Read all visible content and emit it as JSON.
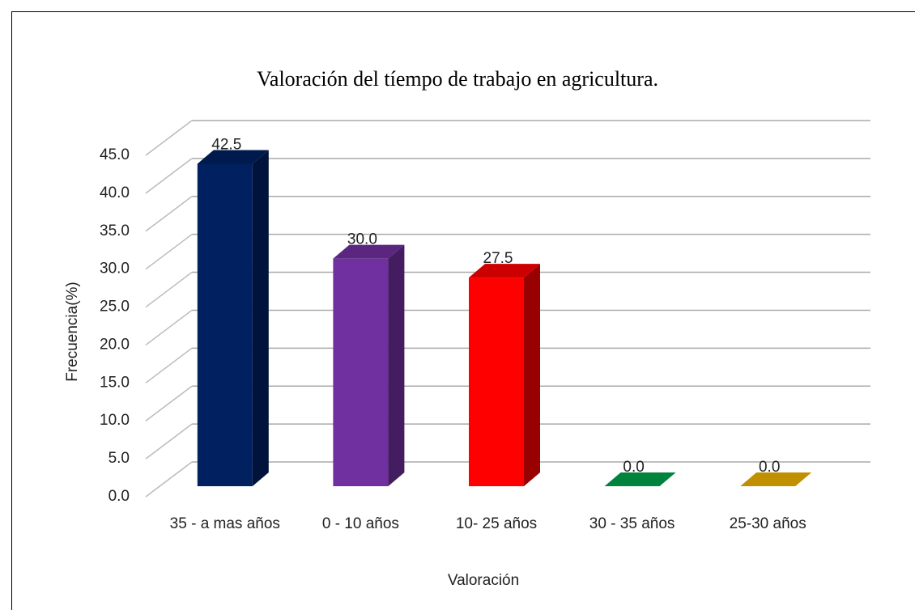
{
  "chart_data": {
    "type": "bar3d",
    "title": "Valoración del tíempo de trabajo en agricultura.",
    "x_label": "Valoración",
    "y_label": "Frecuencia(%)",
    "categories": [
      "35 - a mas años",
      "0 - 10 años",
      "10- 25 años",
      "30 - 35 años",
      "25-30 años"
    ],
    "values": [
      42.5,
      30.0,
      27.5,
      0.0,
      0.0
    ],
    "value_labels": [
      "42.5",
      "30.0",
      "27.5",
      "0.0",
      "0.0"
    ],
    "colors": [
      "#002060",
      "#7030a0",
      "#ff0000",
      "#00843d",
      "#c09000"
    ],
    "ylim": [
      0,
      45
    ],
    "yticks": [
      {
        "value": 0,
        "label": "0.0"
      },
      {
        "value": 5,
        "label": "5.0"
      },
      {
        "value": 10,
        "label": "10.0"
      },
      {
        "value": 15,
        "label": "15.0"
      },
      {
        "value": 20,
        "label": "20.0"
      },
      {
        "value": 25,
        "label": "25.0"
      },
      {
        "value": 30,
        "label": "30.0"
      },
      {
        "value": 35,
        "label": "35.0"
      },
      {
        "value": 40,
        "label": "40.0"
      },
      {
        "value": 45,
        "label": "45.0"
      }
    ],
    "grid": true
  }
}
